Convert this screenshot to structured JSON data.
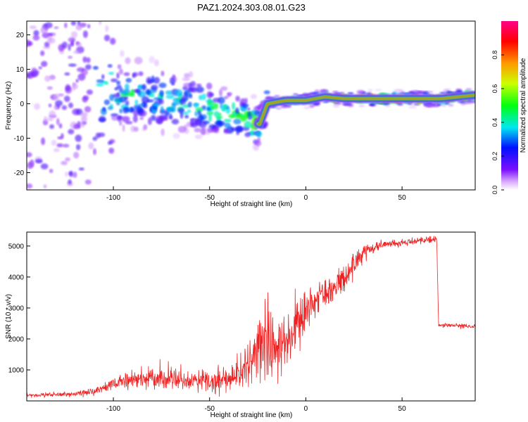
{
  "title": "PAZ1.2024.303.08.01.G23",
  "chart_data": [
    {
      "type": "heatmap",
      "xlabel": "Height of straight line (km)",
      "ylabel": "Frequency (Hz)",
      "xlim": [
        -145,
        88
      ],
      "ylim": [
        -25,
        24
      ],
      "x_ticks": [
        -100,
        -50,
        0,
        50
      ],
      "y_ticks": [
        -20,
        -10,
        0,
        10,
        20
      ],
      "x_tick_labels": [
        "-100",
        "-50",
        "0",
        "50"
      ],
      "y_tick_labels": [
        "-20",
        "-10",
        "0",
        "10",
        "20"
      ],
      "colorbar": {
        "label": "Normalized spectral amplitude",
        "range": [
          0,
          1
        ],
        "ticks": [
          0.0,
          0.2,
          0.4,
          0.6,
          0.8
        ],
        "tick_labels": [
          "0.0",
          "0.2",
          "0.4",
          "0.6",
          "0.8"
        ],
        "colormap": "rainbow (white-violet-blue-cyan-green-yellow-red-magenta)"
      },
      "ridge": {
        "description": "dominant frequency track",
        "x": [
          -145,
          -120,
          -100,
          -80,
          -60,
          -40,
          -30,
          -24,
          -20,
          -10,
          0,
          10,
          20,
          30,
          50,
          70,
          88
        ],
        "y": [
          5,
          4,
          3,
          2,
          0,
          -3,
          -5,
          -6,
          0,
          1,
          1,
          2,
          1.5,
          1.5,
          1.5,
          1.5,
          2.5
        ],
        "amplitude": [
          0.1,
          0.25,
          0.35,
          0.4,
          0.35,
          0.45,
          0.5,
          0.5,
          0.45,
          0.6,
          0.7,
          0.75,
          0.8,
          0.9,
          0.95,
          0.9,
          0.75
        ]
      }
    },
    {
      "type": "line",
      "xlabel": "Height of straight line (km)",
      "ylabel": "SNR (10 * v/v)",
      "xlim": [
        -145,
        88
      ],
      "ylim": [
        0,
        5450
      ],
      "x_ticks": [
        -100,
        -50,
        0,
        50
      ],
      "y_ticks": [
        1000,
        2000,
        3000,
        4000,
        5000
      ],
      "x_tick_labels": [
        "-100",
        "-50",
        "0",
        "50"
      ],
      "y_tick_labels": [
        "1000",
        "2000",
        "3000",
        "4000",
        "5000"
      ],
      "color": "#ee2222",
      "envelope": {
        "x": [
          -145,
          -120,
          -110,
          -100,
          -90,
          -80,
          -70,
          -60,
          -50,
          -40,
          -30,
          -25,
          -20,
          -15,
          -10,
          -5,
          0,
          10,
          20,
          25,
          30,
          40,
          50,
          60,
          68,
          69,
          75,
          88
        ],
        "y": [
          180,
          220,
          300,
          550,
          700,
          720,
          680,
          650,
          620,
          700,
          1100,
          1700,
          2200,
          1700,
          1800,
          2400,
          3000,
          3500,
          4000,
          4400,
          4800,
          5050,
          5100,
          5200,
          5200,
          2450,
          2450,
          2400
        ],
        "noise": [
          40,
          50,
          80,
          150,
          200,
          220,
          220,
          200,
          220,
          300,
          450,
          800,
          1100,
          700,
          600,
          500,
          500,
          400,
          350,
          300,
          200,
          100,
          80,
          80,
          80,
          50,
          50,
          50
        ]
      }
    }
  ]
}
